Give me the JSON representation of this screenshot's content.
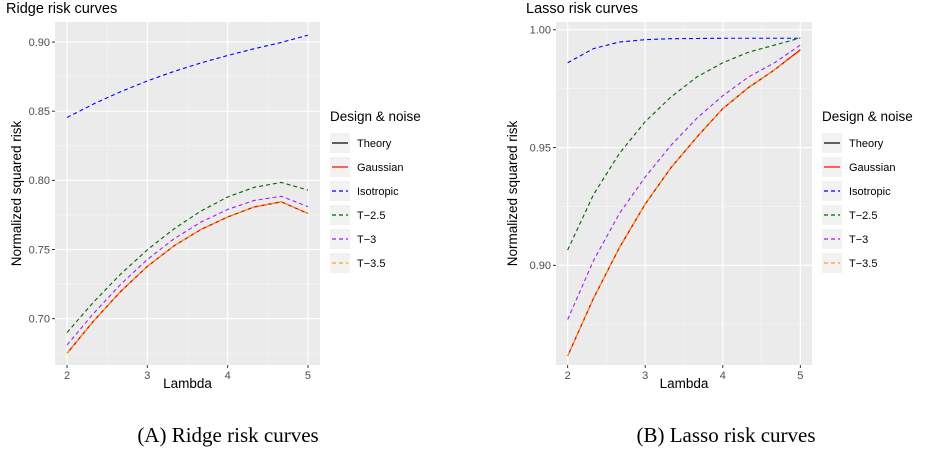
{
  "legend": {
    "title": "Design & noise",
    "entries": [
      {
        "name": "Theory",
        "color": "#000000",
        "dash": "solid"
      },
      {
        "name": "Gaussian",
        "color": "#ff0000",
        "dash": "solid"
      },
      {
        "name": "Isotropic",
        "color": "#0000ff",
        "dash": "dashed"
      },
      {
        "name": "T−2.5",
        "color": "#006400",
        "dash": "dashed"
      },
      {
        "name": "T−3",
        "color": "#a020f0",
        "dash": "dashed"
      },
      {
        "name": "T−3.5",
        "color": "#ffa500",
        "dash": "dashed"
      }
    ]
  },
  "captions": [
    "(A) Ridge risk curves",
    "(B) Lasso risk curves"
  ],
  "chart_data": [
    {
      "type": "line",
      "title": "Ridge risk curves",
      "xlabel": "Lambda",
      "ylabel": "Normalized squared risk",
      "xlim": [
        1.85,
        5.15
      ],
      "ylim": [
        0.6665,
        0.9145
      ],
      "xticks": [
        2,
        3,
        4,
        5
      ],
      "yticks": [
        0.7,
        0.75,
        0.8,
        0.85,
        0.9
      ],
      "ytick_labels": [
        "0.70",
        "0.75",
        "0.80",
        "0.85",
        "0.90"
      ],
      "x": [
        2.0,
        2.333,
        2.667,
        3.0,
        3.333,
        3.667,
        4.0,
        4.333,
        4.667,
        5.0
      ],
      "series": [
        {
          "name": "Theory",
          "values": [
            0.675,
            0.6985,
            0.7196,
            0.7378,
            0.7527,
            0.7645,
            0.7735,
            0.7808,
            0.7845,
            0.776
          ]
        },
        {
          "name": "Gaussian",
          "values": [
            0.675,
            0.6985,
            0.7196,
            0.7378,
            0.7527,
            0.7645,
            0.7735,
            0.7808,
            0.7845,
            0.776
          ]
        },
        {
          "name": "Isotropic",
          "values": [
            0.8455,
            0.8553,
            0.8641,
            0.8719,
            0.8788,
            0.8849,
            0.8903,
            0.8952,
            0.8997,
            0.905
          ]
        },
        {
          "name": "T−2.5",
          "values": [
            0.69,
            0.7122,
            0.7322,
            0.7498,
            0.765,
            0.7778,
            0.788,
            0.795,
            0.7985,
            0.793
          ]
        },
        {
          "name": "T−3",
          "values": [
            0.681,
            0.704,
            0.7248,
            0.7428,
            0.7578,
            0.7698,
            0.779,
            0.7855,
            0.7885,
            0.781
          ]
        },
        {
          "name": "T−3.5",
          "values": [
            0.675,
            0.6985,
            0.7196,
            0.7378,
            0.7527,
            0.7645,
            0.7735,
            0.7808,
            0.7845,
            0.776
          ]
        }
      ]
    },
    {
      "type": "line",
      "title": "Lasso risk curves",
      "xlabel": "Lambda",
      "ylabel": "Normalized squared risk",
      "xlim": [
        1.85,
        5.15
      ],
      "ylim": [
        0.8577,
        1.0033
      ],
      "xticks": [
        2,
        3,
        4,
        5
      ],
      "yticks": [
        0.9,
        0.95,
        1.0
      ],
      "ytick_labels": [
        "0.90",
        "0.95",
        "1.00"
      ],
      "x": [
        2.0,
        2.333,
        2.667,
        3.0,
        3.333,
        3.667,
        4.0,
        4.333,
        4.667,
        5.0
      ],
      "series": [
        {
          "name": "Theory",
          "values": [
            0.8615,
            0.886,
            0.9075,
            0.926,
            0.9415,
            0.9545,
            0.9665,
            0.9755,
            0.983,
            0.9915
          ]
        },
        {
          "name": "Gaussian",
          "values": [
            0.8615,
            0.886,
            0.9075,
            0.926,
            0.9415,
            0.9545,
            0.9665,
            0.9755,
            0.983,
            0.9915
          ]
        },
        {
          "name": "Isotropic",
          "values": [
            0.986,
            0.992,
            0.9948,
            0.9958,
            0.9962,
            0.9963,
            0.9964,
            0.9964,
            0.9964,
            0.9964
          ]
        },
        {
          "name": "T−2.5",
          "values": [
            0.9065,
            0.93,
            0.9475,
            0.961,
            0.9715,
            0.98,
            0.986,
            0.9905,
            0.9935,
            0.9965
          ]
        },
        {
          "name": "T−3",
          "values": [
            0.877,
            0.902,
            0.922,
            0.9375,
            0.951,
            0.9625,
            0.972,
            0.98,
            0.986,
            0.9935
          ]
        },
        {
          "name": "T−3.5",
          "values": [
            0.8615,
            0.886,
            0.9075,
            0.926,
            0.9415,
            0.9545,
            0.9665,
            0.9755,
            0.983,
            0.991
          ]
        }
      ]
    }
  ]
}
